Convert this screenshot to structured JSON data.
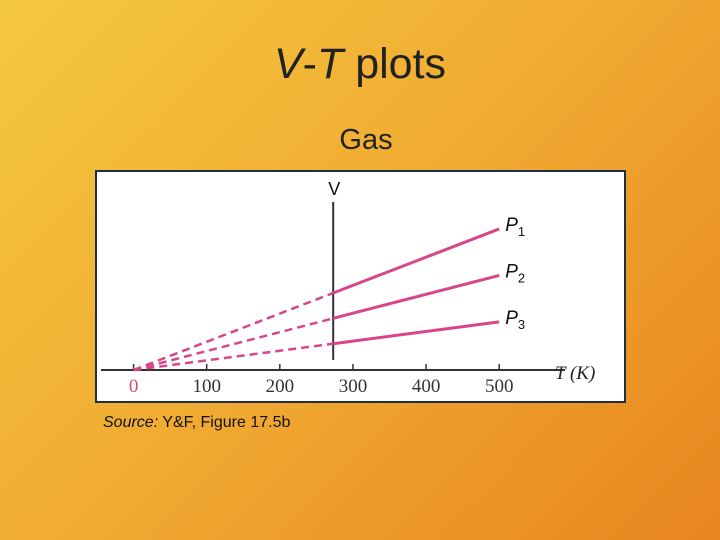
{
  "slide": {
    "title_var1": "V",
    "title_sep": "-",
    "title_var2": "T",
    "title_rest": "plots",
    "subtitle": "Gas",
    "source_label": "Source:",
    "source_text": "Y&F, Figure 17.5b"
  },
  "chart_data": {
    "type": "line",
    "title": "",
    "xlabel": "T (K)",
    "ylabel": "V",
    "x_ticks": [
      0,
      100,
      200,
      300,
      400,
      500
    ],
    "xlim": [
      -50,
      590
    ],
    "ylim": [
      0,
      1
    ],
    "measured_range": [
      273,
      500
    ],
    "extrapolated_range": [
      0,
      273
    ],
    "zero_tick_color": "#d44a7a",
    "line_color": "#d8468a",
    "series": [
      {
        "name": "P",
        "sub": "1",
        "x": [
          0,
          500
        ],
        "y": [
          0,
          0.82
        ]
      },
      {
        "name": "P",
        "sub": "2",
        "x": [
          0,
          500
        ],
        "y": [
          0,
          0.55
        ]
      },
      {
        "name": "P",
        "sub": "3",
        "x": [
          0,
          500
        ],
        "y": [
          0,
          0.28
        ]
      }
    ]
  }
}
